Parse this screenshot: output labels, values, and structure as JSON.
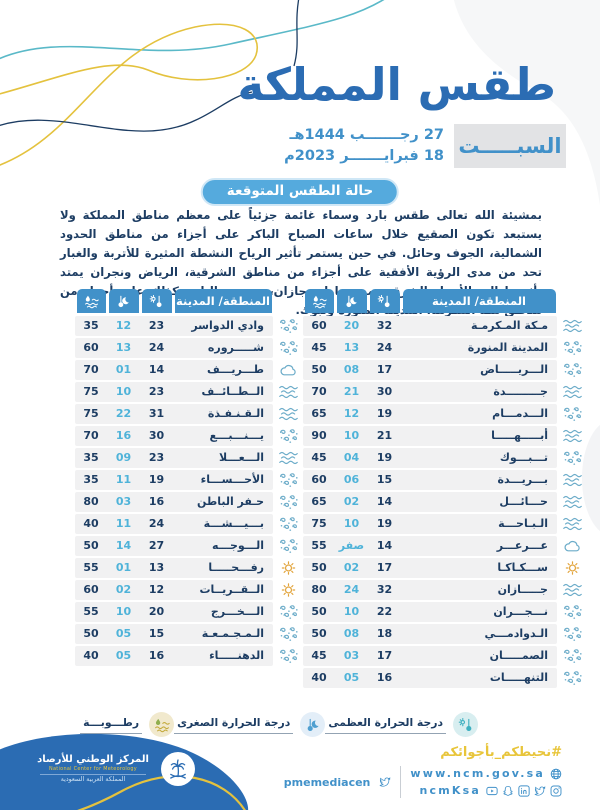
{
  "header": {
    "title": "طقس المملكة",
    "day": "السبـــــت",
    "date_hijri": "27 رجـــــــب 1444هـ",
    "date_gregorian": "18 فبرايـــــــر 2023م",
    "section_badge": "حالة الطقس المتوقعة"
  },
  "forecast_text": "بمشيئة الله تعالى طقس بارد وسماء غائمة جزئياً على معظم مناطق المملكة ولا يستبعد تكون الصقيع خلال ساعات الصباح الباكر على أجزاء من مناطق الحدود الشمالية، الجوف وحائل. في حين يستمر تأثير الرياح النشطة المثيرة للأتربة والغبار تحد من مدى الرؤية الأفقية على أجزاء من مناطق الشرقية، الرياض ونجران يمتد تأثيرها إلى الأجزاء الشرقية من مناطق جازان، عسير والباحة كذلك على أجزاء من مناطق مكة المكرمة، المدينة المنورة وتبوك.",
  "tables": {
    "header_city": "المنطقة/ المدينة",
    "column_icons": {
      "max_temp": "sun-thermometer-icon",
      "min_temp": "moon-thermometer-icon",
      "humidity": "humidity-waves-icon"
    },
    "right_rows": [
      {
        "city": "مـكة المـكرمـة",
        "max": "32",
        "min": "20",
        "hum": "60",
        "cond": "haze"
      },
      {
        "city": "المدينة المنورة",
        "max": "24",
        "min": "13",
        "hum": "45",
        "cond": "dust"
      },
      {
        "city": "الـــريـــــاض",
        "max": "17",
        "min": "08",
        "hum": "50",
        "cond": "dust"
      },
      {
        "city": "جـــــــــدة",
        "max": "30",
        "min": "21",
        "hum": "70",
        "cond": "haze"
      },
      {
        "city": "الـــدمـــام",
        "max": "19",
        "min": "12",
        "hum": "65",
        "cond": "dust"
      },
      {
        "city": "أبـــــهـــــا",
        "max": "21",
        "min": "10",
        "hum": "90",
        "cond": "haze"
      },
      {
        "city": "تـــبـــوك",
        "max": "19",
        "min": "04",
        "hum": "45",
        "cond": "dust"
      },
      {
        "city": "بـــريـــدة",
        "max": "15",
        "min": "06",
        "hum": "60",
        "cond": "haze"
      },
      {
        "city": "حـــائـــل",
        "max": "14",
        "min": "02",
        "hum": "65",
        "cond": "haze"
      },
      {
        "city": "الـبـاحـــة",
        "max": "19",
        "min": "10",
        "hum": "75",
        "cond": "haze"
      },
      {
        "city": "عـــرعـــر",
        "max": "14",
        "min": "صفر",
        "hum": "55",
        "cond": "cloud"
      },
      {
        "city": "ســـكـاكـا",
        "max": "17",
        "min": "02",
        "hum": "50",
        "cond": "sun"
      },
      {
        "city": "جـــــازان",
        "max": "32",
        "min": "24",
        "hum": "80",
        "cond": "haze"
      },
      {
        "city": "نـــجـــران",
        "max": "22",
        "min": "10",
        "hum": "50",
        "cond": "dust"
      },
      {
        "city": "الـدوادمـــي",
        "max": "18",
        "min": "08",
        "hum": "50",
        "cond": "dust"
      },
      {
        "city": "الصمـــــان",
        "max": "17",
        "min": "03",
        "hum": "45",
        "cond": "dust"
      },
      {
        "city": "التنهـــــات",
        "max": "16",
        "min": "05",
        "hum": "40",
        "cond": "dust"
      }
    ],
    "left_rows": [
      {
        "city": "وادي الدواسر",
        "max": "23",
        "min": "12",
        "hum": "35",
        "cond": "dust"
      },
      {
        "city": "شـــــروره",
        "max": "24",
        "min": "13",
        "hum": "60",
        "cond": "dust"
      },
      {
        "city": "طـــريـــف",
        "max": "14",
        "min": "01",
        "hum": "70",
        "cond": "cloud"
      },
      {
        "city": "الــطــائــف",
        "max": "23",
        "min": "10",
        "hum": "75",
        "cond": "haze"
      },
      {
        "city": "الـقـنـفـذة",
        "max": "31",
        "min": "22",
        "hum": "75",
        "cond": "haze"
      },
      {
        "city": "يـــنـــبـــع",
        "max": "30",
        "min": "16",
        "hum": "70",
        "cond": "dust"
      },
      {
        "city": "الـــعـــلا",
        "max": "23",
        "min": "09",
        "hum": "35",
        "cond": "haze"
      },
      {
        "city": "الأحـــســـاء",
        "max": "19",
        "min": "11",
        "hum": "35",
        "cond": "dust"
      },
      {
        "city": "حـفر الباطن",
        "max": "16",
        "min": "03",
        "hum": "80",
        "cond": "dust"
      },
      {
        "city": "بـــيـــشـــة",
        "max": "24",
        "min": "11",
        "hum": "40",
        "cond": "dust"
      },
      {
        "city": "الـــوجـــه",
        "max": "27",
        "min": "14",
        "hum": "50",
        "cond": "dust"
      },
      {
        "city": "رفـــحـــــا",
        "max": "13",
        "min": "01",
        "hum": "55",
        "cond": "sun"
      },
      {
        "city": "الــقــريــات",
        "max": "12",
        "min": "02",
        "hum": "60",
        "cond": "sun"
      },
      {
        "city": "الـــخـــرج",
        "max": "20",
        "min": "10",
        "hum": "55",
        "cond": "dust"
      },
      {
        "city": "الـمـجـمـعـة",
        "max": "15",
        "min": "05",
        "hum": "50",
        "cond": "dust"
      },
      {
        "city": "الدهنـــــاء",
        "max": "16",
        "min": "05",
        "hum": "40",
        "cond": "dust"
      }
    ]
  },
  "legend": {
    "items": [
      {
        "label": "درجة الحرارة العظمى",
        "icon": "sun-thermometer-icon"
      },
      {
        "label": "درجة الحرارة الصغرى",
        "icon": "moon-thermometer-icon"
      },
      {
        "label": "رطـــوبـــة",
        "icon": "humidity-waves-icon"
      }
    ]
  },
  "footer": {
    "hashtag": "#نحيطكم_بأجوائكم",
    "website": "www.ncm.gov.sa",
    "social_handle": "ncmKsa",
    "twitter_handle": "pmemediacen",
    "logo": {
      "name_ar": "المركز الوطني للأرصاد",
      "name_en": "National Center for Meteorology",
      "country": "المملكة العربية السعودية"
    }
  },
  "colors": {
    "primary_blue": "#2b6cb3",
    "header_blue": "#4191c9",
    "badge_blue": "#55aadd",
    "navy_text": "#1d3d63",
    "min_temp_blue": "#4fb3d9",
    "accent_yellow": "#e8c53a",
    "row_gray": "#f1f1f2"
  }
}
